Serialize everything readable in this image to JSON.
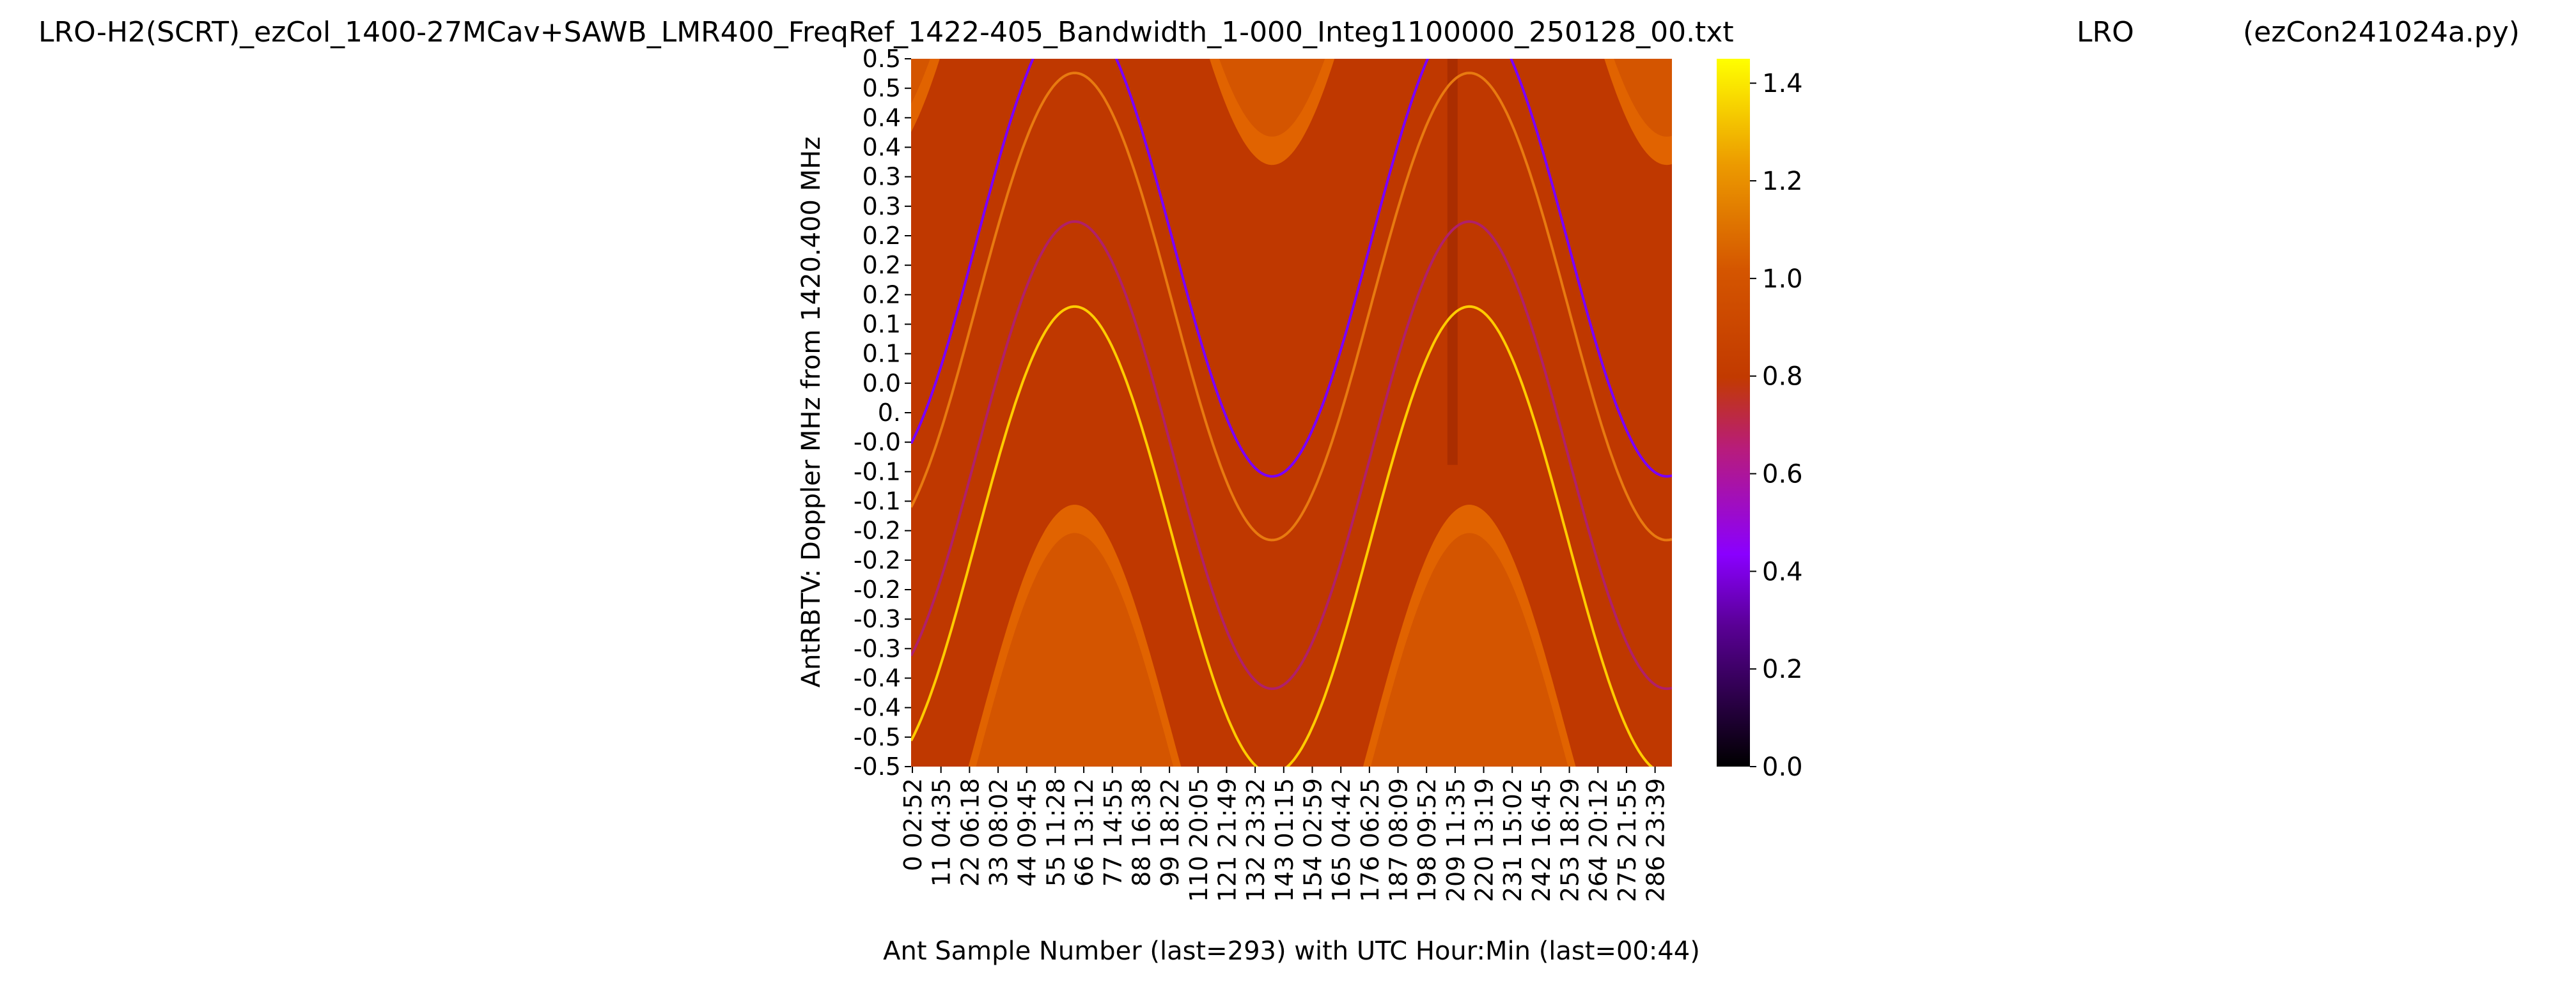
{
  "chart_data": {
    "type": "heatmap",
    "title": "LRO-H2(SCRT)_ezCol_1400-27MCav+SAWB_LMR400_FreqRef_1422-405_Bandwidth_1-000_Integ1100000_250128_00.txt",
    "title_mid": "LRO",
    "title_right": "(ezCon241024a.py)",
    "xlabel": "Ant Sample Number (last=293) with UTC Hour:Min (last=00:44)",
    "ylabel": "AntRBTV:  Doppler MHz from 1420.400 MHz",
    "x_tick_samples": [
      "0",
      "11",
      "22",
      "33",
      "44",
      "55",
      "66",
      "77",
      "88",
      "99",
      "110",
      "121",
      "132",
      "143",
      "154",
      "165",
      "176",
      "187",
      "198",
      "209",
      "220",
      "231",
      "242",
      "253",
      "264",
      "275",
      "286"
    ],
    "x_tick_times": [
      "02:52",
      "04:35",
      "06:18",
      "08:02",
      "09:45",
      "11:28",
      "13:12",
      "14:55",
      "16:38",
      "18:22",
      "20:05",
      "21:49",
      "23:32",
      "01:15",
      "02:59",
      "04:42",
      "06:25",
      "08:09",
      "09:52",
      "11:35",
      "13:19",
      "15:02",
      "16:45",
      "18:29",
      "20:12",
      "21:55",
      "23:39"
    ],
    "y_ticks": [
      "0.5",
      "0.5",
      "0.4",
      "0.4",
      "0.3",
      "0.3",
      "0.2",
      "0.2",
      "0.2",
      "0.1",
      "0.1",
      "0.0",
      "0.",
      "-0.0",
      "-0.1",
      "-0.1",
      "-0.2",
      "-0.2",
      "-0.2",
      "-0.3",
      "-0.3",
      "-0.4",
      "-0.4",
      "-0.5",
      "-0.5"
    ],
    "xlim": [
      0,
      293
    ],
    "ylim": [
      -0.5,
      0.5
    ],
    "colorbar": {
      "min": 0.0,
      "max": 1.45,
      "ticks": [
        "0.0",
        "0.2",
        "0.4",
        "0.6",
        "0.8",
        "1.0",
        "1.2",
        "1.4"
      ],
      "colormap": "gnuplot"
    },
    "wave": {
      "period_samples": 152,
      "phase_samples": 25,
      "band_center": 0.11,
      "band_amplitude": 0.33,
      "band_halfwidth": 0.57,
      "discontinuity_sample": 208,
      "lines": [
        {
          "offset": 0.13,
          "value": 0.25
        },
        {
          "offset": 0.04,
          "value": 0.95
        },
        {
          "offset": -0.17,
          "value": 0.65
        },
        {
          "offset": -0.29,
          "value": 1.25
        }
      ]
    },
    "colors": {
      "background": "#d45500",
      "band": "#bf3800",
      "edge": "#e26500",
      "line_purple": "#7a00ff",
      "line_yellow": "#ffcc00"
    }
  }
}
